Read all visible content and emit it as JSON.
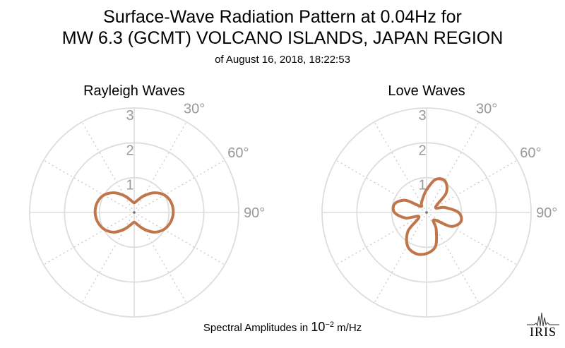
{
  "header": {
    "title_line1": "Surface-Wave Radiation Pattern at 0.04Hz for",
    "title_line2": "MW 6.3 (GCMT) VOLCANO ISLANDS, JAPAN REGION",
    "subtitle": "of August 16, 2018, 18:22:53"
  },
  "footer": {
    "label_prefix": "Spectral Amplitudes in ",
    "label_base": "10",
    "label_exponent": "−2",
    "label_unit": " m/Hz"
  },
  "logo": {
    "text": "IRIS"
  },
  "colors": {
    "curve": "#c0764a",
    "grid": "#dddddd",
    "grid_dotted": "#cccccc",
    "tick_label": "#999999"
  },
  "chart_data": [
    {
      "type": "polar-line",
      "title": "Rayleigh Waves",
      "radial_ticks": [
        1,
        2,
        3
      ],
      "radial_max": 3,
      "angle_ticks": [
        0,
        30,
        60,
        90,
        120,
        150,
        180,
        210,
        240,
        270,
        300,
        330
      ],
      "angle_tick_labels": [
        "30°",
        "60°",
        "90°"
      ],
      "angle_tick_label_angles": [
        30,
        60,
        90
      ],
      "series": [
        {
          "angles_deg": [
            0,
            15,
            30,
            45,
            60,
            75,
            90,
            105,
            120,
            135,
            150,
            165,
            180,
            195,
            210,
            225,
            240,
            255,
            270,
            285,
            300,
            315,
            330,
            345
          ],
          "values": [
            0.28,
            0.36,
            0.55,
            0.8,
            1.0,
            1.1,
            1.12,
            1.08,
            0.98,
            0.8,
            0.55,
            0.36,
            0.28,
            0.36,
            0.55,
            0.8,
            0.98,
            1.08,
            1.12,
            1.1,
            1.0,
            0.8,
            0.55,
            0.36
          ]
        }
      ]
    },
    {
      "type": "polar-line",
      "title": "Love Waves",
      "radial_ticks": [
        1,
        2,
        3
      ],
      "radial_max": 3,
      "angle_ticks": [
        0,
        30,
        60,
        90,
        120,
        150,
        180,
        210,
        240,
        270,
        300,
        330
      ],
      "angle_tick_labels": [
        "30°",
        "60°",
        "90°"
      ],
      "angle_tick_label_angles": [
        30,
        60,
        90
      ],
      "series": [
        {
          "angles_deg": [
            0,
            15,
            30,
            45,
            60,
            75,
            90,
            105,
            120,
            135,
            150,
            165,
            180,
            195,
            210,
            225,
            240,
            255,
            270,
            285,
            300,
            315,
            330,
            345
          ],
          "values": [
            0.65,
            0.98,
            1.05,
            0.8,
            0.3,
            0.55,
            0.92,
            1.02,
            0.8,
            0.3,
            0.55,
            1.0,
            1.18,
            1.22,
            1.1,
            0.75,
            0.25,
            0.62,
            0.92,
            0.95,
            0.7,
            0.25,
            0.3,
            0.42
          ]
        }
      ]
    }
  ]
}
